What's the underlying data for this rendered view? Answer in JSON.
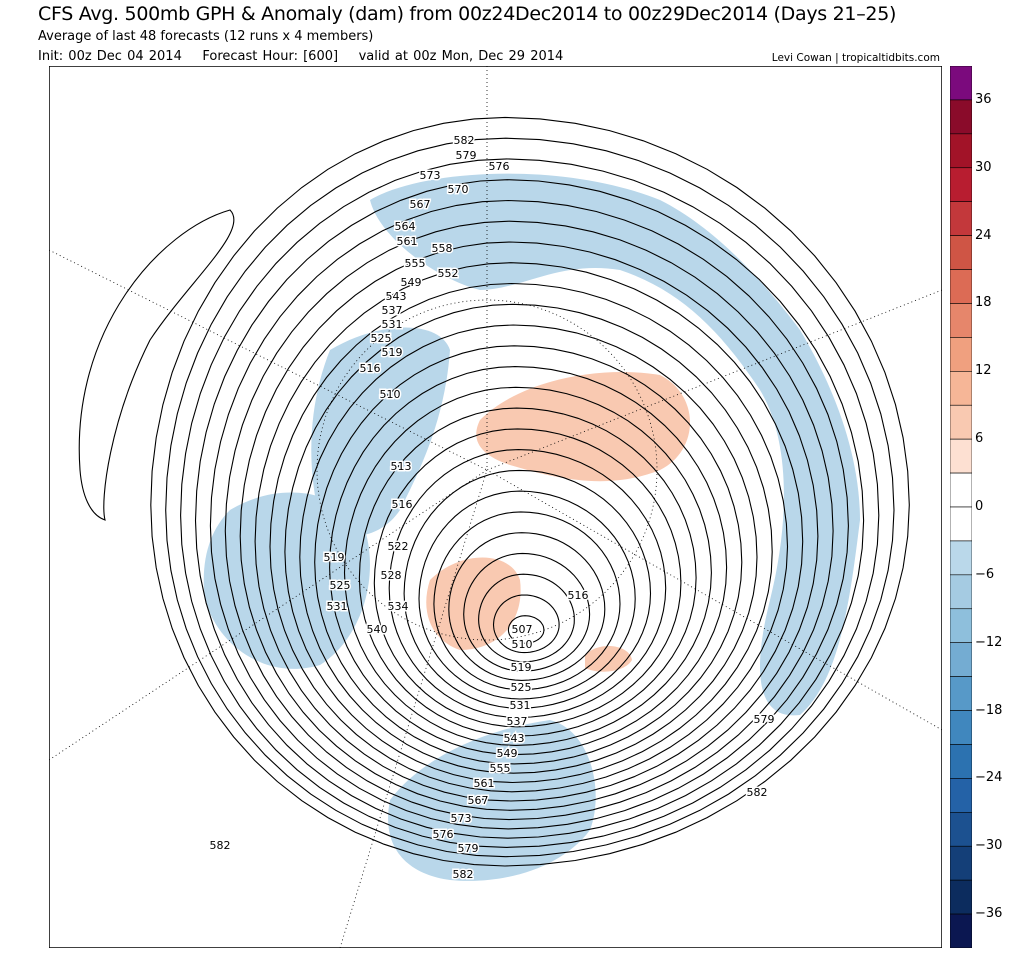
{
  "header": {
    "title": "CFS Avg. 500mb GPH & Anomaly (dam) from 00z24Dec2014 to 00z29Dec2014 (Days 21–25)",
    "subtitle": "Average of last 48 forecasts (12 runs x 4 members)",
    "init": "Init: 00z Dec 04 2014",
    "forecast_hour": "Forecast Hour: [600]",
    "valid": "valid at 00z Mon, Dec 29 2014",
    "credit": "Levi Cowan | tropicaltidbits.com"
  },
  "colorbar": {
    "labels": [
      "36",
      "30",
      "24",
      "18",
      "12",
      "6",
      "0",
      "−6",
      "−12",
      "−18",
      "−24",
      "−30",
      "−36"
    ],
    "colors": [
      "#7b0a7d",
      "#8a0b2a",
      "#a21328",
      "#b81d30",
      "#c3383b",
      "#cf5545",
      "#dc6b55",
      "#e6866b",
      "#f0a07f",
      "#f6b697",
      "#f9c9b1",
      "#fde0d2",
      "#ffffff",
      "#ffffff",
      "#bad8ea",
      "#a5cbe2",
      "#8ebfdc",
      "#74acd2",
      "#5799c8",
      "#4087be",
      "#2c72b0",
      "#2462a7",
      "#1c5190",
      "#143f78",
      "#0c2c5e",
      "#0b1751"
    ]
  },
  "map": {
    "contour_labels": [
      "582",
      "579",
      "576",
      "573",
      "570",
      "567",
      "564",
      "561",
      "558",
      "555",
      "552",
      "549",
      "543",
      "537",
      "531",
      "525",
      "519",
      "516",
      "510",
      "513",
      "516",
      "519",
      "525",
      "531",
      "522",
      "528",
      "534",
      "540",
      "516",
      "507",
      "510",
      "519",
      "525",
      "531",
      "537",
      "543",
      "549",
      "555",
      "561",
      "567",
      "573",
      "576",
      "579",
      "582",
      "579",
      "582",
      "582"
    ],
    "anomaly_blue": "#b9d7ea",
    "anomaly_orange": "#f9c9b1"
  }
}
